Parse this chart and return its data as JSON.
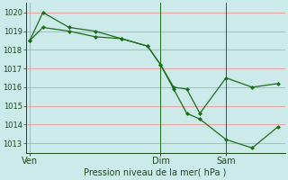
{
  "xlabel": "Pression niveau de la mer( hPa )",
  "bg_color": "#cceaea",
  "grid_color": "#e8a0a0",
  "line_color": "#1a6e1a",
  "marker_color": "#1a6e1a",
  "ylim": [
    1012.5,
    1020.5
  ],
  "yticks": [
    1013,
    1014,
    1015,
    1016,
    1017,
    1018,
    1019,
    1020
  ],
  "day_labels": [
    "Ven",
    "Dim",
    "Sam"
  ],
  "day_positions": [
    0,
    10,
    15
  ],
  "xlim": [
    -0.3,
    19.5
  ],
  "series1_x": [
    0,
    1,
    3,
    5,
    7,
    9,
    10,
    11,
    12,
    13,
    15,
    17,
    19
  ],
  "series1_y": [
    1018.5,
    1020.0,
    1019.2,
    1019.0,
    1018.6,
    1018.2,
    1017.2,
    1015.9,
    1014.6,
    1014.3,
    1013.2,
    1012.75,
    1013.9
  ],
  "series2_x": [
    0,
    1,
    3,
    5,
    7,
    9,
    10,
    11,
    12,
    13,
    15,
    17,
    19
  ],
  "series2_y": [
    1018.5,
    1019.2,
    1019.0,
    1018.7,
    1018.6,
    1018.2,
    1017.2,
    1016.0,
    1015.9,
    1014.6,
    1016.5,
    1016.0,
    1016.2
  ],
  "vline_positions": [
    10,
    15
  ],
  "xlabel_fontsize": 7,
  "ytick_fontsize": 6,
  "xtick_fontsize": 7
}
